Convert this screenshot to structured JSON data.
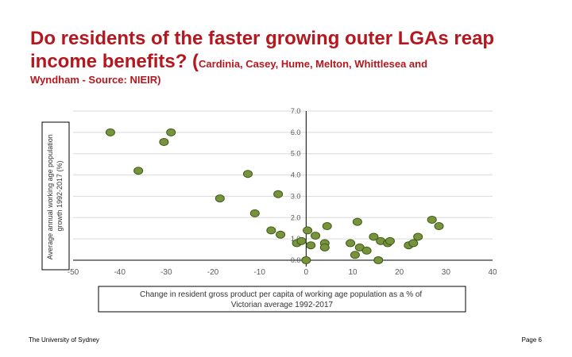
{
  "title": {
    "main": "Do residents of the faster growing outer LGAs reap income benefits? (",
    "details": "Cardinia, Casey, Hume, Melton, Whittlesea and",
    "line3": "Wyndham - Source: NIEIR)"
  },
  "footer": {
    "left": "The University of Sydney",
    "right": "Page 6"
  },
  "colors": {
    "title": "#b5171e",
    "point_fill": "#77933c",
    "point_stroke": "#3d5a17",
    "gridline": "#d9d9d9",
    "axis": "#000000",
    "tick_text": "#595959"
  },
  "chart_data": {
    "type": "scatter",
    "title": "",
    "xlabel": "Change in resident gross product per capita of working age population as a % of Victorian average 1992-2017",
    "ylabel": "Average annual working age population growth 1992-2017 (%)",
    "xlim": [
      -50,
      40
    ],
    "ylim": [
      0,
      7
    ],
    "xticks": [
      -50,
      -40,
      -30,
      -20,
      -10,
      0,
      10,
      20,
      30,
      40
    ],
    "yticks": [
      0,
      1,
      2,
      3,
      4,
      5,
      6,
      7
    ],
    "xtick_labels": [
      "-50",
      "-40",
      "-30",
      "-20",
      "-10",
      "0",
      "10",
      "20",
      "30",
      "40"
    ],
    "ytick_labels": [
      "0.0",
      "1.0",
      "2.0",
      "3.0",
      "4.0",
      "5.0",
      "6.0",
      "7.0"
    ],
    "grid": "horizontal",
    "points": [
      {
        "x": -42.0,
        "y": 6.0
      },
      {
        "x": -29.0,
        "y": 6.0
      },
      {
        "x": -30.5,
        "y": 5.55
      },
      {
        "x": -36.0,
        "y": 4.2
      },
      {
        "x": -12.5,
        "y": 4.05
      },
      {
        "x": -18.5,
        "y": 2.9
      },
      {
        "x": -6.0,
        "y": 3.1
      },
      {
        "x": -11.0,
        "y": 2.2
      },
      {
        "x": -7.5,
        "y": 1.4
      },
      {
        "x": -5.5,
        "y": 1.2
      },
      {
        "x": -2.0,
        "y": 0.8
      },
      {
        "x": -1.0,
        "y": 0.9
      },
      {
        "x": 0.3,
        "y": 1.4
      },
      {
        "x": 1.0,
        "y": 0.7
      },
      {
        "x": 2.0,
        "y": 1.15
      },
      {
        "x": 4.0,
        "y": 0.8
      },
      {
        "x": 4.5,
        "y": 1.6
      },
      {
        "x": 4.0,
        "y": 0.6
      },
      {
        "x": 0.0,
        "y": 0.0
      },
      {
        "x": 9.5,
        "y": 0.8
      },
      {
        "x": 11.0,
        "y": 1.8
      },
      {
        "x": 11.5,
        "y": 0.6
      },
      {
        "x": 10.5,
        "y": 0.25
      },
      {
        "x": 13.0,
        "y": 0.45
      },
      {
        "x": 14.5,
        "y": 1.1
      },
      {
        "x": 16.0,
        "y": 0.9
      },
      {
        "x": 17.5,
        "y": 0.8
      },
      {
        "x": 18.0,
        "y": 0.9
      },
      {
        "x": 15.5,
        "y": 0.0
      },
      {
        "x": 22.0,
        "y": 0.7
      },
      {
        "x": 23.0,
        "y": 0.8
      },
      {
        "x": 24.0,
        "y": 1.1
      },
      {
        "x": 27.0,
        "y": 1.9
      },
      {
        "x": 28.5,
        "y": 1.6
      }
    ]
  }
}
